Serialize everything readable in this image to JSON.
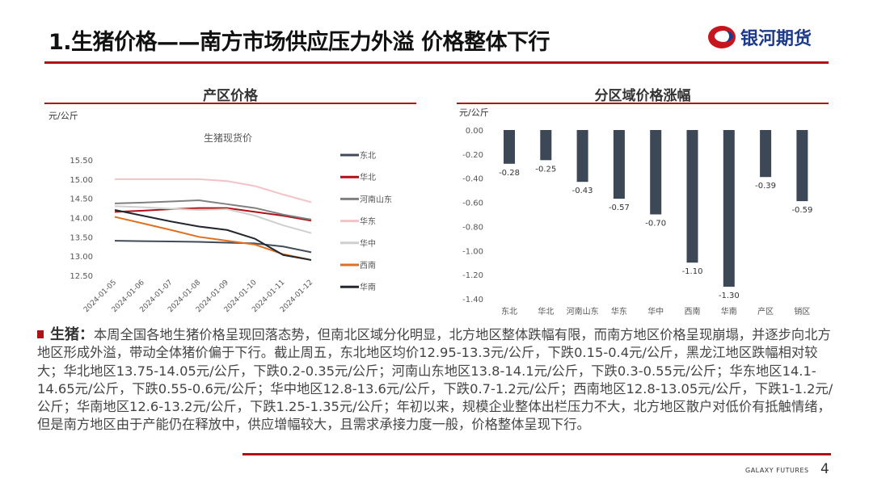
{
  "header": {
    "title": "1.生猪价格——南方市场供应压力外溢  价格整体下行",
    "logo_text": "银河期货"
  },
  "footer": {
    "brand": "GALAXY FUTURES",
    "page": "4"
  },
  "left_panel": {
    "title": "产区价格",
    "unit": "元/公斤"
  },
  "right_panel": {
    "title": "分区域价格涨幅",
    "unit": "元/公斤"
  },
  "chart_data": [
    {
      "type": "line",
      "title": "生猪现货价",
      "ylabel": "元/公斤",
      "ylim": [
        12.5,
        15.5
      ],
      "yticks": [
        "15.50",
        "15.00",
        "14.50",
        "14.00",
        "13.50",
        "13.00",
        "12.50"
      ],
      "x": [
        "2024-01-05",
        "2024-01-06",
        "2024-01-07",
        "2024-01-08",
        "2024-01-09",
        "2024-01-10",
        "2024-01-11",
        "2024-01-12"
      ],
      "legend_position": "right",
      "series": [
        {
          "name": "东北",
          "color": "#404a59",
          "values": [
            13.4,
            13.39,
            13.38,
            13.37,
            13.35,
            13.33,
            13.25,
            13.1
          ]
        },
        {
          "name": "华北",
          "color": "#b01118",
          "values": [
            14.15,
            14.18,
            14.22,
            14.25,
            14.25,
            14.15,
            14.05,
            13.92
          ]
        },
        {
          "name": "河南山东",
          "color": "#808080",
          "values": [
            14.37,
            14.39,
            14.42,
            14.45,
            14.35,
            14.25,
            14.08,
            13.95
          ]
        },
        {
          "name": "华东",
          "color": "#f4c2c6",
          "values": [
            15.0,
            15.0,
            15.0,
            15.0,
            14.95,
            14.82,
            14.6,
            14.4
          ]
        },
        {
          "name": "华中",
          "color": "#cfcfcf",
          "values": [
            14.3,
            14.27,
            14.23,
            14.2,
            14.22,
            14.05,
            13.8,
            13.6
          ]
        },
        {
          "name": "西南",
          "color": "#e07020",
          "values": [
            14.02,
            13.85,
            13.68,
            13.5,
            13.4,
            13.3,
            13.05,
            12.9
          ]
        },
        {
          "name": "华南",
          "color": "#23262e",
          "values": [
            14.2,
            14.05,
            13.9,
            13.77,
            13.68,
            13.45,
            13.03,
            12.9
          ]
        }
      ]
    },
    {
      "type": "bar",
      "title": "分区域价格涨幅",
      "ylabel": "元/公斤",
      "ylim": [
        -1.4,
        0
      ],
      "yticks": [
        "0.00",
        "-0.20",
        "-0.40",
        "-0.60",
        "-0.80",
        "-1.00",
        "-1.20",
        "-1.40"
      ],
      "categories": [
        "东北",
        "华北",
        "河南山东",
        "华东",
        "华中",
        "西南",
        "华南",
        "产区",
        "销区"
      ],
      "values": [
        -0.28,
        -0.25,
        -0.43,
        -0.57,
        -0.7,
        -1.1,
        -1.3,
        -0.39,
        -0.59
      ],
      "labels": [
        "-0.28",
        "-0.25",
        "-0.43",
        "-0.57",
        "-0.70",
        "-1.10",
        "-1.30",
        "-0.39",
        "-0.59"
      ],
      "color": "#3d4856"
    }
  ],
  "body": {
    "lead": "生猪：",
    "text": "本周全国各地生猪价格呈现回落态势，但南北区域分化明显，北方地区整体跌幅有限，而南方地区价格呈现崩塌，并逐步向北方地区形成外溢，带动全体猪价偏于下行。截止周五，东北地区均价12.95-13.3元/公斤，下跌0.15-0.4元/公斤，黑龙江地区跌幅相对较大；华北地区13.75-14.05元/公斤，下跌0.2-0.35元/公斤；河南山东地区13.8-14.1元/公斤，下跌0.3-0.55元/公斤；华东地区14.1-14.65元/公斤，下跌0.55-0.6元/公斤；华中地区12.8-13.6元/公斤，下跌0.7-1.2元/公斤；西南地区12.8-13.05元/公斤，下跌1-1.2元/公斤；华南地区12.6-13.2元/公斤，下跌1.25-1.35元/公斤；年初以来，规模企业整体出栏压力不大，北方地区散户对低价有抵触情绪，但是南方地区由于产能仍在释放中，供应增幅较大，且需求承接力度一般，价格整体呈现下行。"
  }
}
